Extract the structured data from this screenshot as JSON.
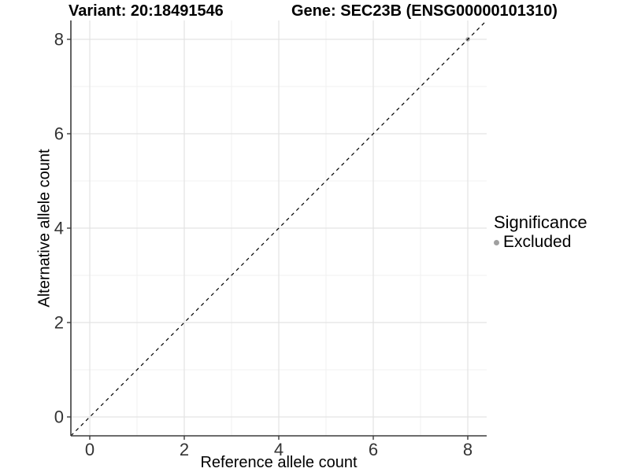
{
  "chart_data": {
    "type": "scatter",
    "titles": {
      "left": "Variant: 20:18491546",
      "right": "Gene: SEC23B (ENSG00000101310)"
    },
    "xlabel": "Reference allele count",
    "ylabel": "Alternative allele count",
    "xlim": [
      -0.4,
      8.4
    ],
    "ylim": [
      -0.4,
      8.4
    ],
    "x_ticks": [
      0,
      2,
      4,
      6,
      8
    ],
    "y_ticks": [
      0,
      2,
      4,
      6,
      8
    ],
    "grid": true,
    "reference_line": {
      "kind": "identity",
      "style": "dashed",
      "color": "#000000"
    },
    "series": [
      {
        "name": "Excluded",
        "color": "#a0a0a0",
        "points": [
          [
            8,
            8
          ]
        ]
      }
    ],
    "legend": {
      "position": "right",
      "title": "Significance",
      "items": [
        {
          "label": "Excluded",
          "color": "#a0a0a0"
        }
      ]
    },
    "colors": {
      "grid_major": "#e3e3e3",
      "grid_minor": "#f1f1f1",
      "axis_line": "#3c3c3c",
      "tick_label": "#333333"
    }
  }
}
